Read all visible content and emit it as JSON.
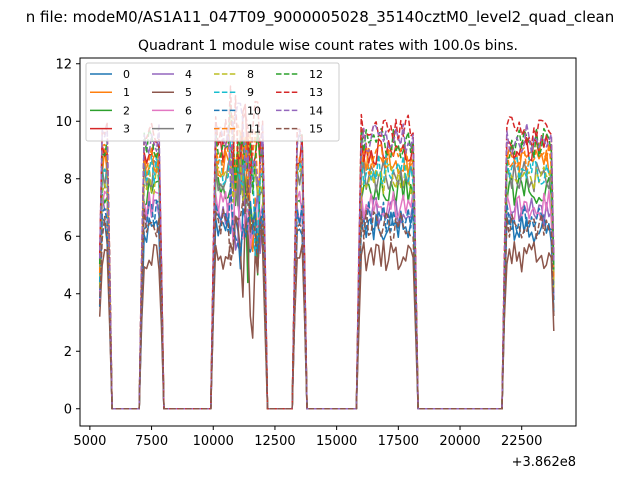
{
  "figure": {
    "suptitle": "n file: modeM0/AS1A11_047T09_9000005028_35140cztM0_level2_quad_clean"
  },
  "chart_data": {
    "type": "line",
    "title": "Quadrant 1 module wise count rates with 100.0s bins.",
    "xlabel": "",
    "ylabel": "",
    "x_offset_label": "+3.862e8",
    "xlim": [
      4600,
      24700
    ],
    "ylim": [
      -0.6,
      12.2
    ],
    "x_ticks": [
      5000,
      7500,
      10000,
      12500,
      15000,
      17500,
      20000,
      22500
    ],
    "x_tick_labels": [
      "5000",
      "7500",
      "10000",
      "12500",
      "15000",
      "17500",
      "20000",
      "22500"
    ],
    "y_ticks": [
      0,
      2,
      4,
      6,
      8,
      10,
      12
    ],
    "y_tick_labels": [
      "0",
      "2",
      "4",
      "6",
      "8",
      "10",
      "12"
    ],
    "grid": false,
    "legend_position": "top-left",
    "legend_columns": 4,
    "intervals": [
      [
        5400,
        5800
      ],
      [
        7100,
        7900
      ],
      [
        10000,
        12100
      ],
      [
        13300,
        13700
      ],
      [
        15900,
        18200
      ],
      [
        21800,
        23800
      ]
    ],
    "series": [
      {
        "name": "0",
        "color": "#1f77b4",
        "dash": "solid",
        "level": 6.3
      },
      {
        "name": "1",
        "color": "#ff7f0e",
        "dash": "solid",
        "level": 8.6
      },
      {
        "name": "2",
        "color": "#2ca02c",
        "dash": "solid",
        "level": 7.6
      },
      {
        "name": "3",
        "color": "#d62728",
        "dash": "solid",
        "level": 9.0
      },
      {
        "name": "4",
        "color": "#9467bd",
        "dash": "solid",
        "level": 6.9
      },
      {
        "name": "5",
        "color": "#8c564b",
        "dash": "solid",
        "level": 5.3
      },
      {
        "name": "6",
        "color": "#e377c2",
        "dash": "solid",
        "level": 7.1
      },
      {
        "name": "7",
        "color": "#7f7f7f",
        "dash": "solid",
        "level": 8.1
      },
      {
        "name": "8",
        "color": "#bcbd22",
        "dash": "dashed",
        "level": 8.0
      },
      {
        "name": "9",
        "color": "#17becf",
        "dash": "dashed",
        "level": 8.3
      },
      {
        "name": "10",
        "color": "#1f77b4",
        "dash": "dashed",
        "level": 6.7
      },
      {
        "name": "11",
        "color": "#ff7f0e",
        "dash": "dashed",
        "level": 8.7
      },
      {
        "name": "12",
        "color": "#2ca02c",
        "dash": "dashed",
        "level": 9.2
      },
      {
        "name": "13",
        "color": "#d62728",
        "dash": "dashed",
        "level": 9.7
      },
      {
        "name": "14",
        "color": "#9467bd",
        "dash": "dashed",
        "level": 9.4
      },
      {
        "name": "15",
        "color": "#8c564b",
        "dash": "dashed",
        "level": 6.4
      }
    ]
  }
}
